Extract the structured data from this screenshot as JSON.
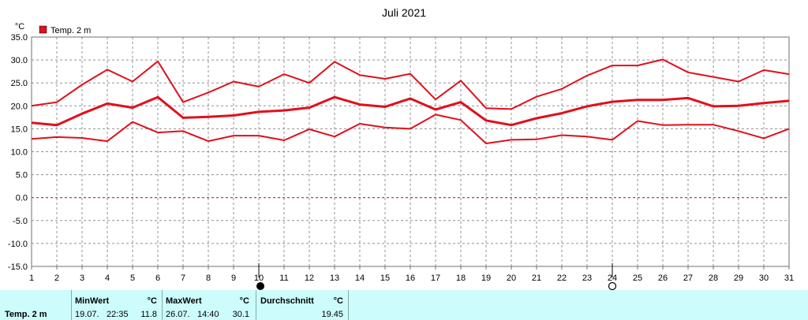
{
  "chart_data": {
    "type": "line",
    "title": "Juli 2021",
    "unit": "°C",
    "legend": "Temp. 2 m",
    "color": "#e0101c",
    "x": [
      1,
      2,
      3,
      4,
      5,
      6,
      7,
      8,
      9,
      10,
      11,
      12,
      13,
      14,
      15,
      16,
      17,
      18,
      19,
      20,
      21,
      22,
      23,
      24,
      25,
      26,
      27,
      28,
      29,
      30,
      31
    ],
    "xlim": [
      1,
      31
    ],
    "ylim": [
      -15,
      35
    ],
    "yticks": [
      "35.0",
      "30.0",
      "25.0",
      "20.0",
      "15.0",
      "10.0",
      "5.0",
      "0.0",
      "-5.0",
      "-10.0",
      "-15.0"
    ],
    "grid": true,
    "series": [
      {
        "values": [
          20.0,
          20.8,
          24.6,
          27.9,
          25.3,
          29.7,
          20.8,
          22.9,
          25.3,
          24.2,
          26.9,
          25.0,
          29.6,
          26.7,
          25.9,
          27.0,
          21.4,
          25.5,
          19.5,
          19.3,
          22.0,
          23.7,
          26.6,
          28.8,
          28.8,
          30.1,
          27.3,
          26.3,
          25.3,
          27.8,
          26.9
        ],
        "width": 2
      },
      {
        "values": [
          16.3,
          15.8,
          18.3,
          20.5,
          19.6,
          21.9,
          17.4,
          17.6,
          17.9,
          18.7,
          19.0,
          19.6,
          21.9,
          20.3,
          19.8,
          21.6,
          19.2,
          20.8,
          16.8,
          15.8,
          17.3,
          18.4,
          19.9,
          20.9,
          21.3,
          21.3,
          21.7,
          19.9,
          20.0,
          20.6,
          21.1
        ],
        "width": 3
      },
      {
        "values": [
          12.8,
          13.2,
          13.0,
          12.3,
          16.5,
          14.2,
          14.5,
          12.3,
          13.5,
          13.5,
          12.5,
          14.9,
          13.3,
          16.1,
          15.3,
          15.0,
          18.1,
          16.9,
          11.8,
          12.6,
          12.7,
          13.6,
          13.3,
          12.6,
          16.7,
          15.8,
          15.9,
          15.9,
          14.5,
          12.9,
          15.0
        ],
        "width": 2
      }
    ],
    "markers": [
      {
        "day": 10,
        "symbol": "full-moon"
      },
      {
        "day": 24,
        "symbol": "new-moon"
      }
    ]
  },
  "stats": {
    "label": "Temp. 2 m",
    "unit": "°C",
    "min": {
      "title": "MinWert",
      "date": "19.07.",
      "time": "22:35",
      "value": "11.8"
    },
    "max": {
      "title": "MaxWert",
      "date": "26.07.",
      "time": "14:40",
      "value": "30.1"
    },
    "avg": {
      "title": "Durchschnitt",
      "value": "19.45"
    }
  }
}
